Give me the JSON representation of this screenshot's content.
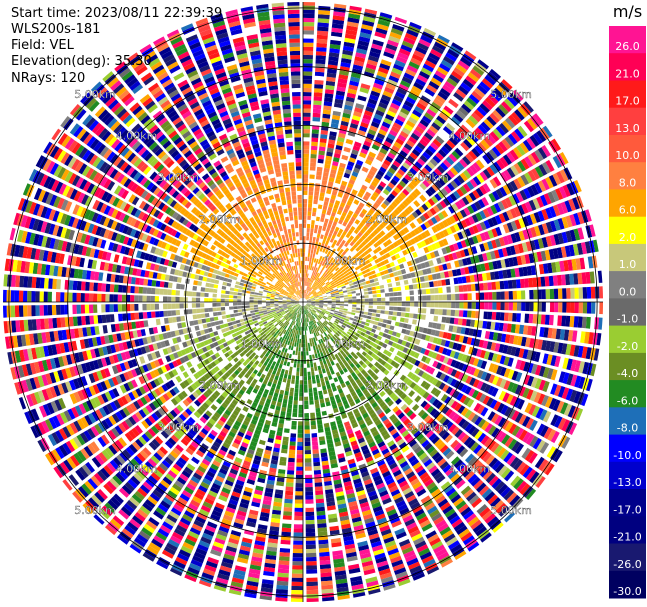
{
  "header": {
    "start_time": "Start time: 2023/08/11 22:39:39",
    "instrument": "WLS200s-181",
    "field": "Field: VEL",
    "elevation": "Elevation(deg): 35.30",
    "nrays": "NRays: 120"
  },
  "chart_data": {
    "type": "heatmap",
    "projection": "polar PPI (plan position indicator)",
    "field": "VEL",
    "nrays": 120,
    "elevation_deg": 35.3,
    "range_rings_km": [
      1.0,
      2.0,
      3.0,
      4.0,
      5.0
    ],
    "ring_labels": [
      "1.00km",
      "2.00km",
      "3.00km",
      "4.00km",
      "5.00km"
    ],
    "unit": "m/s",
    "colorbar": {
      "ticks": [
        "26.0",
        "21.0",
        "17.0",
        "13.0",
        "10.0",
        "8.0",
        "6.0",
        "2.0",
        "1.0",
        "0.0",
        "-1.0",
        "-2.0",
        "-4.0",
        "-6.0",
        "-8.0",
        "-10.0",
        "-13.0",
        "-17.0",
        "-21.0",
        "-26.0",
        "-30.0"
      ],
      "colors": [
        "#ff1493",
        "#ff0055",
        "#ff1a1a",
        "#ff3f3f",
        "#ff5a3c",
        "#ff8040",
        "#ffa500",
        "#ffff00",
        "#c8c87a",
        "#808080",
        "#6a6a6a",
        "#9acd32",
        "#6b8e23",
        "#228b22",
        "#1e6fb8",
        "#0000ff",
        "#0000cd",
        "#00008b",
        "#000080",
        "#191970",
        "#000060"
      ]
    },
    "pattern": {
      "near_field_max_km": 2.5,
      "north_sector": "positive (yellow/orange, 2 to 8 m/s)",
      "south_sector": "negative (green/blue, -2 to -8 m/s)",
      "east_west": "near zero (gray)",
      "far_field": "noise, random values across full range"
    }
  }
}
